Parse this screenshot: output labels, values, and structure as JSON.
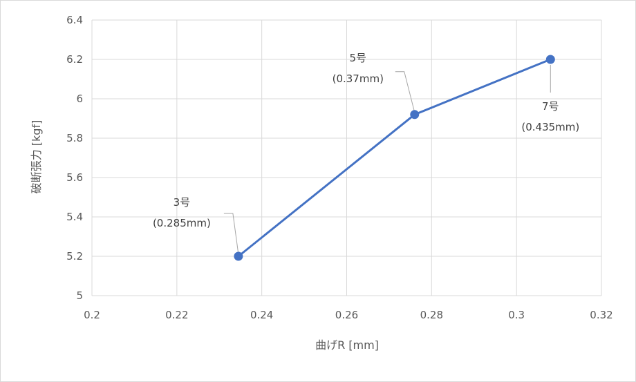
{
  "chart_data": {
    "type": "line",
    "xlabel": "曲げR [mm]",
    "ylabel": "破断張力 [kgf]",
    "xlim": [
      0.2,
      0.32
    ],
    "ylim": [
      5,
      6.4
    ],
    "x_ticks": [
      "0.2",
      "0.22",
      "0.24",
      "0.26",
      "0.28",
      "0.3",
      "0.32"
    ],
    "y_ticks": [
      "5",
      "5.2",
      "5.4",
      "5.6",
      "5.8",
      "6",
      "6.2",
      "6.4"
    ],
    "grid": true,
    "series": [
      {
        "color": "#4472c4",
        "points": [
          {
            "x": 0.2345,
            "y": 5.2,
            "label_line1": "3号",
            "label_line2": "(0.285mm)"
          },
          {
            "x": 0.276,
            "y": 5.92,
            "label_line1": "5号",
            "label_line2": "(0.37mm)"
          },
          {
            "x": 0.308,
            "y": 6.2,
            "label_line1": "7号",
            "label_line2": "(0.435mm)"
          }
        ]
      }
    ]
  }
}
